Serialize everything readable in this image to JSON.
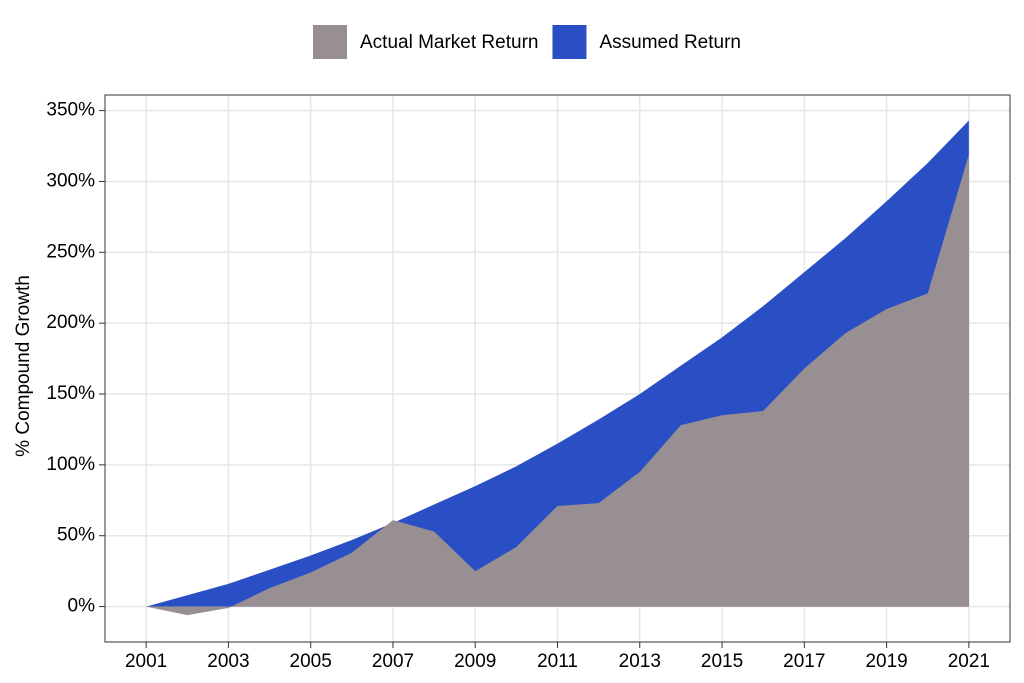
{
  "chart_data": {
    "type": "area",
    "y_label": "% Compound Growth",
    "x": [
      2001,
      2002,
      2003,
      2004,
      2005,
      2006,
      2007,
      2008,
      2009,
      2010,
      2011,
      2012,
      2013,
      2014,
      2015,
      2016,
      2017,
      2018,
      2019,
      2020,
      2021
    ],
    "series": [
      {
        "name": "Actual Market Return",
        "color": "#988f93",
        "values": [
          0,
          -6,
          -1,
          13,
          24,
          38,
          61,
          53,
          25,
          42,
          71,
          73,
          95,
          128,
          135,
          138,
          168,
          193,
          210,
          221,
          319
        ]
      },
      {
        "name": "Assumed Return",
        "color": "#2a4fc4",
        "values": [
          0,
          8,
          16,
          26,
          36,
          47,
          59,
          72,
          85,
          99,
          115,
          132,
          150,
          170,
          190,
          212,
          236,
          260,
          286,
          313,
          343
        ]
      }
    ],
    "xlim": [
      2000,
      2022
    ],
    "xticks": [
      2001,
      2003,
      2005,
      2007,
      2009,
      2011,
      2013,
      2015,
      2017,
      2019,
      2021
    ],
    "ylim": [
      -25,
      361
    ],
    "yticks": [
      {
        "value": 0,
        "label": "0%"
      },
      {
        "value": 50,
        "label": "50%"
      },
      {
        "value": 100,
        "label": "100%"
      },
      {
        "value": 150,
        "label": "150%"
      },
      {
        "value": 200,
        "label": "200%"
      },
      {
        "value": 250,
        "label": "250%"
      },
      {
        "value": 300,
        "label": "300%"
      },
      {
        "value": 350,
        "label": "350%"
      }
    ],
    "grid": true,
    "legend": "top"
  }
}
